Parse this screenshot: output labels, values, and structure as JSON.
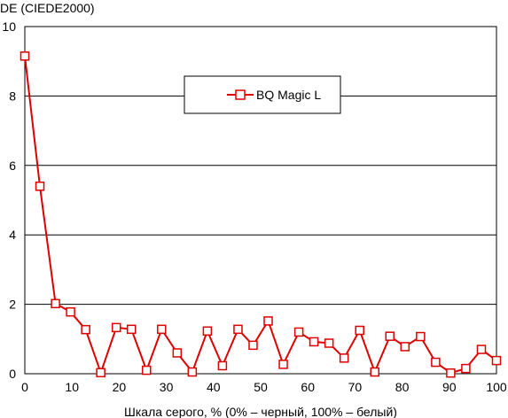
{
  "chart_data": {
    "type": "line",
    "ylabel": "DE (CIEDE2000)",
    "xlabel": "Шкала серого, % (0% – черный, 100% – белый)",
    "xlim": [
      0,
      100
    ],
    "ylim": [
      0,
      10
    ],
    "xticks": [
      0,
      10,
      20,
      30,
      40,
      50,
      60,
      70,
      80,
      90,
      100
    ],
    "yticks": [
      0,
      2,
      4,
      6,
      8,
      10
    ],
    "grid": "horizontal",
    "legend_position": "top-center",
    "series": [
      {
        "name": "BQ Magic L",
        "color": "#dd0000",
        "marker": "open-square",
        "x": [
          0,
          3.2,
          6.5,
          9.7,
          12.9,
          16.1,
          19.4,
          22.6,
          25.8,
          29.0,
          32.3,
          35.5,
          38.7,
          41.9,
          45.2,
          48.4,
          51.6,
          54.8,
          58.1,
          61.3,
          64.5,
          67.7,
          71.0,
          74.2,
          77.4,
          80.6,
          83.9,
          87.1,
          90.3,
          93.5,
          96.8,
          100
        ],
        "y": [
          9.15,
          5.4,
          2.02,
          1.78,
          1.27,
          0.03,
          1.33,
          1.28,
          0.1,
          1.28,
          0.6,
          0.05,
          1.23,
          0.23,
          1.28,
          0.82,
          1.52,
          0.27,
          1.2,
          0.92,
          0.88,
          0.45,
          1.25,
          0.05,
          1.08,
          0.78,
          1.07,
          0.33,
          0.02,
          0.15,
          0.7,
          0.38
        ]
      }
    ]
  }
}
